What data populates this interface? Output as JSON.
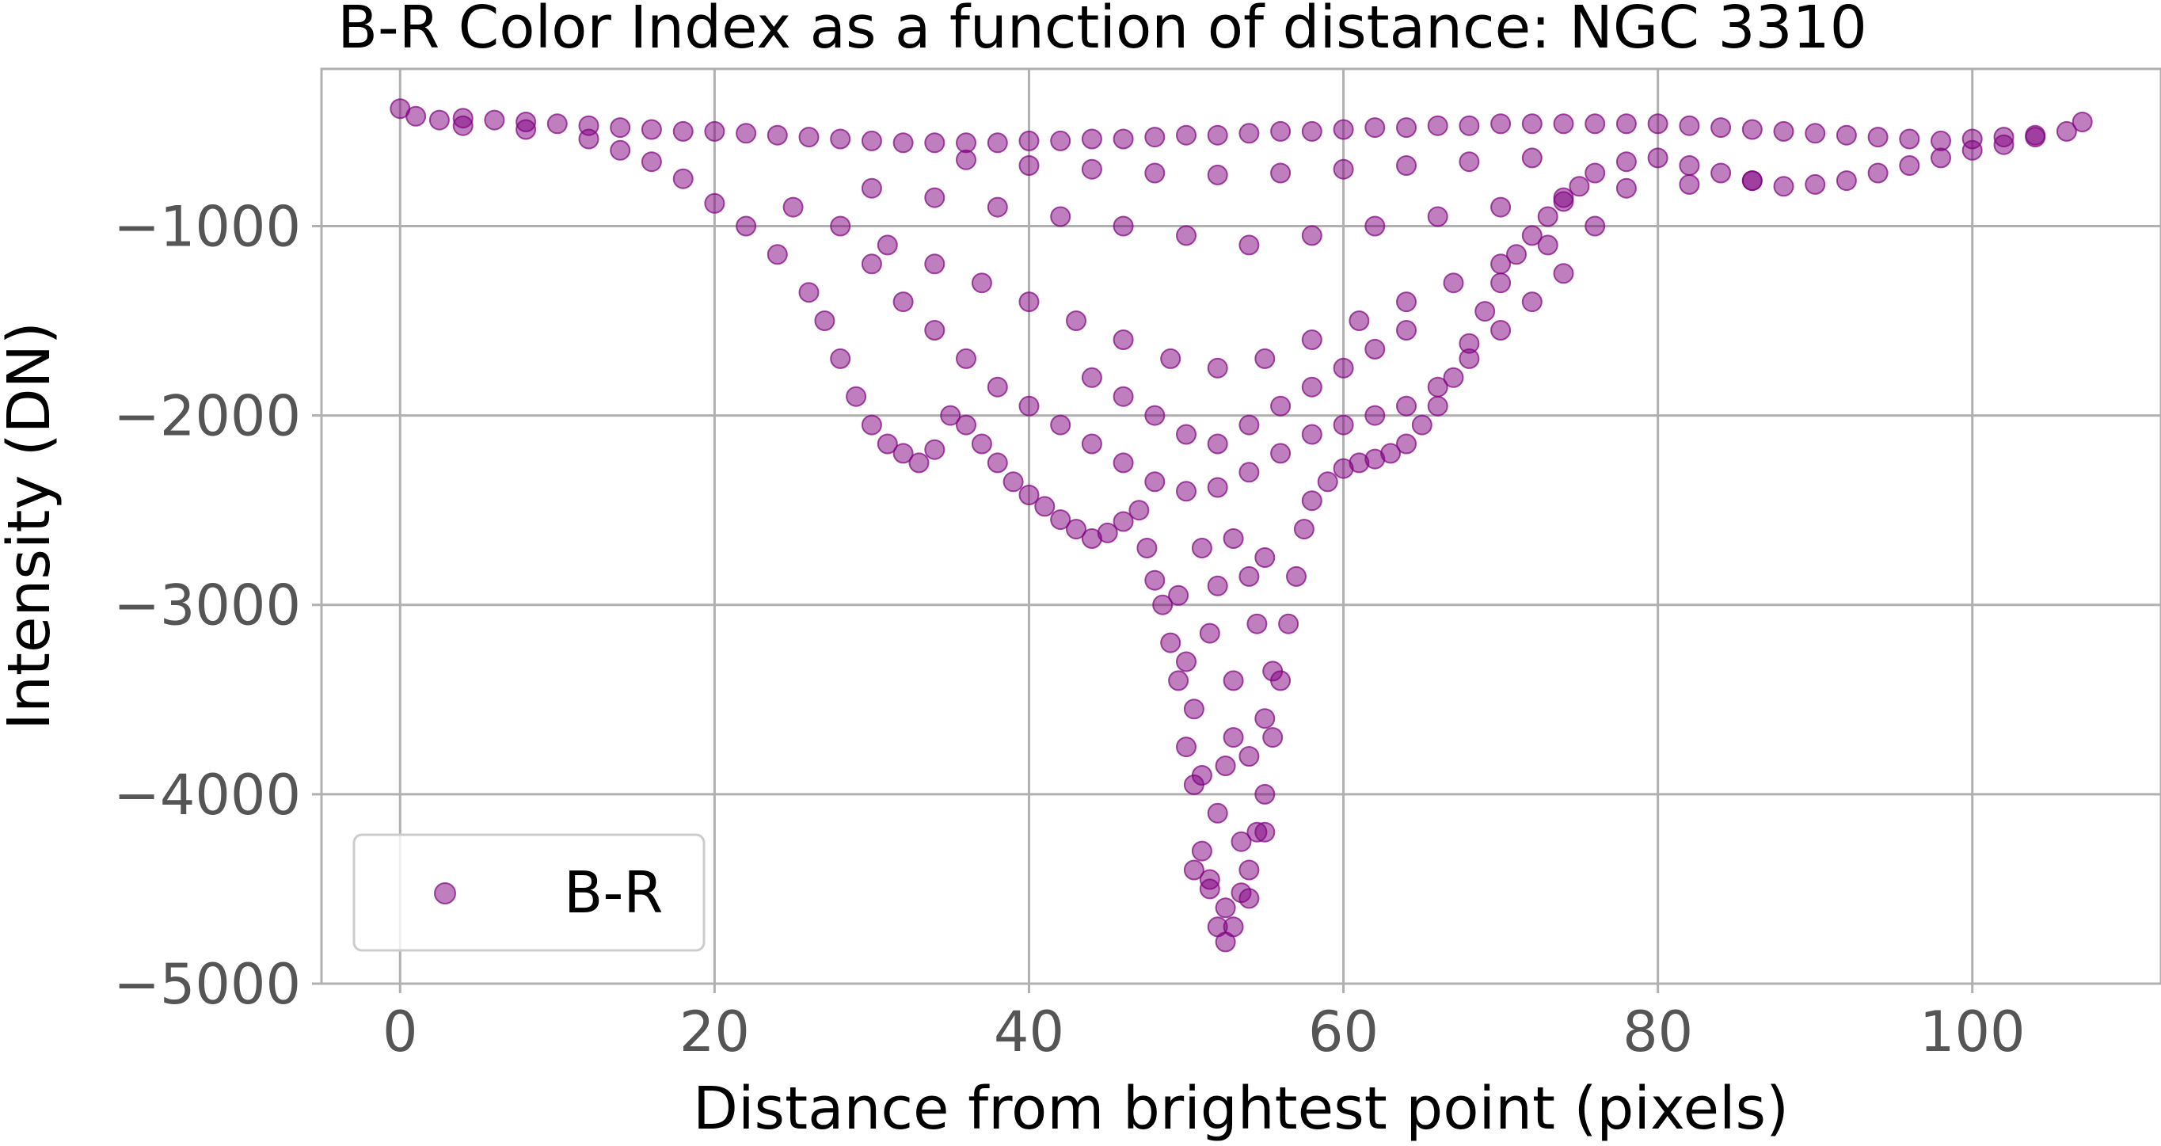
{
  "chart_data": {
    "type": "scatter",
    "title": "B-R Color Index as a function of distance: NGC 3310",
    "xlabel": "Distance from brightest point (pixels)",
    "ylabel": "Intensity (DN)",
    "xlim": [
      -5,
      112
    ],
    "ylim": [
      -5000,
      -170
    ],
    "x_ticks": [
      0,
      20,
      40,
      60,
      80,
      100
    ],
    "y_ticks": [
      -1000,
      -2000,
      -3000,
      -4000,
      -5000
    ],
    "x_tick_labels": [
      "0",
      "20",
      "40",
      "60",
      "80",
      "100"
    ],
    "y_tick_labels": [
      "−1000",
      "−2000",
      "−3000",
      "−4000",
      "−5000"
    ],
    "grid": true,
    "legend": {
      "position": "lower-left",
      "entries": [
        "B-R"
      ]
    },
    "marker_color": "#800080",
    "marker_alpha": 0.5,
    "series": [
      {
        "name": "B-R",
        "color": "#800080",
        "points": [
          [
            0.0,
            -380
          ],
          [
            1.0,
            -420
          ],
          [
            2.5,
            -440
          ],
          [
            4.0,
            -430
          ],
          [
            6.0,
            -440
          ],
          [
            8.0,
            -450
          ],
          [
            10.0,
            -460
          ],
          [
            12.0,
            -470
          ],
          [
            14.0,
            -480
          ],
          [
            16.0,
            -490
          ],
          [
            18.0,
            -500
          ],
          [
            20.0,
            -500
          ],
          [
            22.0,
            -510
          ],
          [
            24.0,
            -520
          ],
          [
            26.0,
            -530
          ],
          [
            28.0,
            -540
          ],
          [
            30.0,
            -550
          ],
          [
            32.0,
            -560
          ],
          [
            34.0,
            -560
          ],
          [
            36.0,
            -560
          ],
          [
            38.0,
            -560
          ],
          [
            40.0,
            -550
          ],
          [
            42.0,
            -550
          ],
          [
            44.0,
            -540
          ],
          [
            46.0,
            -540
          ],
          [
            48.0,
            -530
          ],
          [
            50.0,
            -520
          ],
          [
            52.0,
            -520
          ],
          [
            54.0,
            -510
          ],
          [
            56.0,
            -500
          ],
          [
            58.0,
            -500
          ],
          [
            60.0,
            -490
          ],
          [
            62.0,
            -480
          ],
          [
            64.0,
            -480
          ],
          [
            66.0,
            -470
          ],
          [
            68.0,
            -470
          ],
          [
            70.0,
            -460
          ],
          [
            72.0,
            -460
          ],
          [
            74.0,
            -460
          ],
          [
            76.0,
            -460
          ],
          [
            78.0,
            -460
          ],
          [
            80.0,
            -460
          ],
          [
            82.0,
            -470
          ],
          [
            84.0,
            -480
          ],
          [
            86.0,
            -490
          ],
          [
            88.0,
            -500
          ],
          [
            90.0,
            -510
          ],
          [
            92.0,
            -520
          ],
          [
            94.0,
            -530
          ],
          [
            96.0,
            -540
          ],
          [
            98.0,
            -550
          ],
          [
            100.0,
            -540
          ],
          [
            102.0,
            -530
          ],
          [
            104.0,
            -520
          ],
          [
            106.0,
            -500
          ],
          [
            107.0,
            -450
          ],
          [
            4.0,
            -470
          ],
          [
            8.0,
            -490
          ],
          [
            12.0,
            -540
          ],
          [
            14.0,
            -600
          ],
          [
            16.0,
            -660
          ],
          [
            18.0,
            -750
          ],
          [
            20.0,
            -880
          ],
          [
            22.0,
            -1000
          ],
          [
            24.0,
            -1150
          ],
          [
            26.0,
            -1350
          ],
          [
            27.0,
            -1500
          ],
          [
            28.0,
            -1700
          ],
          [
            29.0,
            -1900
          ],
          [
            30.0,
            -2050
          ],
          [
            31.0,
            -2150
          ],
          [
            32.0,
            -2200
          ],
          [
            33.0,
            -2250
          ],
          [
            34.0,
            -2180
          ],
          [
            35.0,
            -2000
          ],
          [
            36.0,
            -2050
          ],
          [
            37.0,
            -2150
          ],
          [
            38.0,
            -2250
          ],
          [
            39.0,
            -2350
          ],
          [
            40.0,
            -2420
          ],
          [
            41.0,
            -2480
          ],
          [
            42.0,
            -2550
          ],
          [
            43.0,
            -2600
          ],
          [
            44.0,
            -2650
          ],
          [
            45.0,
            -2620
          ],
          [
            46.0,
            -2560
          ],
          [
            47.0,
            -2500
          ],
          [
            47.5,
            -2700
          ],
          [
            48.0,
            -2870
          ],
          [
            48.5,
            -3000
          ],
          [
            49.0,
            -3200
          ],
          [
            49.5,
            -3400
          ],
          [
            50.0,
            -3750
          ],
          [
            50.5,
            -3950
          ],
          [
            51.0,
            -4300
          ],
          [
            51.5,
            -4500
          ],
          [
            52.0,
            -4700
          ],
          [
            52.5,
            -4780
          ],
          [
            53.0,
            -4700
          ],
          [
            53.5,
            -4520
          ],
          [
            54.0,
            -4400
          ],
          [
            54.5,
            -4200
          ],
          [
            55.0,
            -4000
          ],
          [
            55.5,
            -3700
          ],
          [
            56.0,
            -3400
          ],
          [
            56.5,
            -3100
          ],
          [
            57.0,
            -2850
          ],
          [
            57.5,
            -2600
          ],
          [
            58.0,
            -2450
          ],
          [
            59.0,
            -2350
          ],
          [
            60.0,
            -2280
          ],
          [
            61.0,
            -2250
          ],
          [
            62.0,
            -2230
          ],
          [
            63.0,
            -2200
          ],
          [
            64.0,
            -2150
          ],
          [
            65.0,
            -2050
          ],
          [
            66.0,
            -1950
          ],
          [
            67.0,
            -1800
          ],
          [
            68.0,
            -1620
          ],
          [
            69.0,
            -1450
          ],
          [
            70.0,
            -1300
          ],
          [
            71.0,
            -1150
          ],
          [
            72.0,
            -1050
          ],
          [
            73.0,
            -950
          ],
          [
            74.0,
            -870
          ],
          [
            75.0,
            -790
          ],
          [
            76.0,
            -720
          ],
          [
            78.0,
            -660
          ],
          [
            80.0,
            -640
          ],
          [
            82.0,
            -680
          ],
          [
            84.0,
            -720
          ],
          [
            86.0,
            -760
          ],
          [
            88.0,
            -790
          ],
          [
            90.0,
            -780
          ],
          [
            92.0,
            -760
          ],
          [
            94.0,
            -720
          ],
          [
            96.0,
            -680
          ],
          [
            98.0,
            -640
          ],
          [
            100.0,
            -600
          ],
          [
            102.0,
            -570
          ],
          [
            104.0,
            -530
          ],
          [
            30.0,
            -1200
          ],
          [
            32.0,
            -1400
          ],
          [
            34.0,
            -1550
          ],
          [
            36.0,
            -1700
          ],
          [
            38.0,
            -1850
          ],
          [
            40.0,
            -1950
          ],
          [
            42.0,
            -2050
          ],
          [
            44.0,
            -2150
          ],
          [
            46.0,
            -2250
          ],
          [
            48.0,
            -2350
          ],
          [
            50.0,
            -2400
          ],
          [
            52.0,
            -2380
          ],
          [
            54.0,
            -2300
          ],
          [
            56.0,
            -2200
          ],
          [
            58.0,
            -2100
          ],
          [
            60.0,
            -2050
          ],
          [
            62.0,
            -2000
          ],
          [
            64.0,
            -1950
          ],
          [
            66.0,
            -1850
          ],
          [
            68.0,
            -1700
          ],
          [
            70.0,
            -1550
          ],
          [
            72.0,
            -1400
          ],
          [
            74.0,
            -1250
          ],
          [
            25.0,
            -900
          ],
          [
            28.0,
            -1000
          ],
          [
            31.0,
            -1100
          ],
          [
            34.0,
            -1200
          ],
          [
            37.0,
            -1300
          ],
          [
            40.0,
            -1400
          ],
          [
            43.0,
            -1500
          ],
          [
            46.0,
            -1600
          ],
          [
            49.0,
            -1700
          ],
          [
            52.0,
            -1750
          ],
          [
            55.0,
            -1700
          ],
          [
            58.0,
            -1600
          ],
          [
            61.0,
            -1500
          ],
          [
            64.0,
            -1400
          ],
          [
            67.0,
            -1300
          ],
          [
            70.0,
            -1200
          ],
          [
            73.0,
            -1100
          ],
          [
            76.0,
            -1000
          ],
          [
            30.0,
            -800
          ],
          [
            34.0,
            -850
          ],
          [
            38.0,
            -900
          ],
          [
            42.0,
            -950
          ],
          [
            46.0,
            -1000
          ],
          [
            50.0,
            -1050
          ],
          [
            54.0,
            -1100
          ],
          [
            58.0,
            -1050
          ],
          [
            62.0,
            -1000
          ],
          [
            66.0,
            -950
          ],
          [
            70.0,
            -900
          ],
          [
            74.0,
            -850
          ],
          [
            78.0,
            -800
          ],
          [
            82.0,
            -780
          ],
          [
            86.0,
            -760
          ],
          [
            36.0,
            -650
          ],
          [
            40.0,
            -680
          ],
          [
            44.0,
            -700
          ],
          [
            48.0,
            -720
          ],
          [
            52.0,
            -730
          ],
          [
            56.0,
            -720
          ],
          [
            60.0,
            -700
          ],
          [
            64.0,
            -680
          ],
          [
            68.0,
            -660
          ],
          [
            72.0,
            -640
          ],
          [
            44.0,
            -1800
          ],
          [
            46.0,
            -1900
          ],
          [
            48.0,
            -2000
          ],
          [
            50.0,
            -2100
          ],
          [
            52.0,
            -2150
          ],
          [
            54.0,
            -2050
          ],
          [
            56.0,
            -1950
          ],
          [
            58.0,
            -1850
          ],
          [
            60.0,
            -1750
          ],
          [
            62.0,
            -1650
          ],
          [
            64.0,
            -1550
          ],
          [
            50.5,
            -3550
          ],
          [
            51.0,
            -3900
          ],
          [
            52.0,
            -4100
          ],
          [
            53.0,
            -3700
          ],
          [
            54.0,
            -3800
          ],
          [
            55.0,
            -3600
          ],
          [
            50.0,
            -3300
          ],
          [
            51.5,
            -3150
          ],
          [
            53.0,
            -3400
          ],
          [
            54.5,
            -3100
          ],
          [
            55.5,
            -3350
          ],
          [
            49.5,
            -2950
          ],
          [
            52.0,
            -2900
          ],
          [
            54.0,
            -2850
          ],
          [
            51.0,
            -2700
          ],
          [
            53.0,
            -2650
          ],
          [
            55.0,
            -2750
          ],
          [
            51.5,
            -4450
          ],
          [
            52.5,
            -4600
          ],
          [
            54.0,
            -4550
          ],
          [
            50.5,
            -4400
          ],
          [
            53.5,
            -4250
          ],
          [
            55.0,
            -4200
          ],
          [
            52.5,
            -3850
          ]
        ]
      }
    ]
  }
}
